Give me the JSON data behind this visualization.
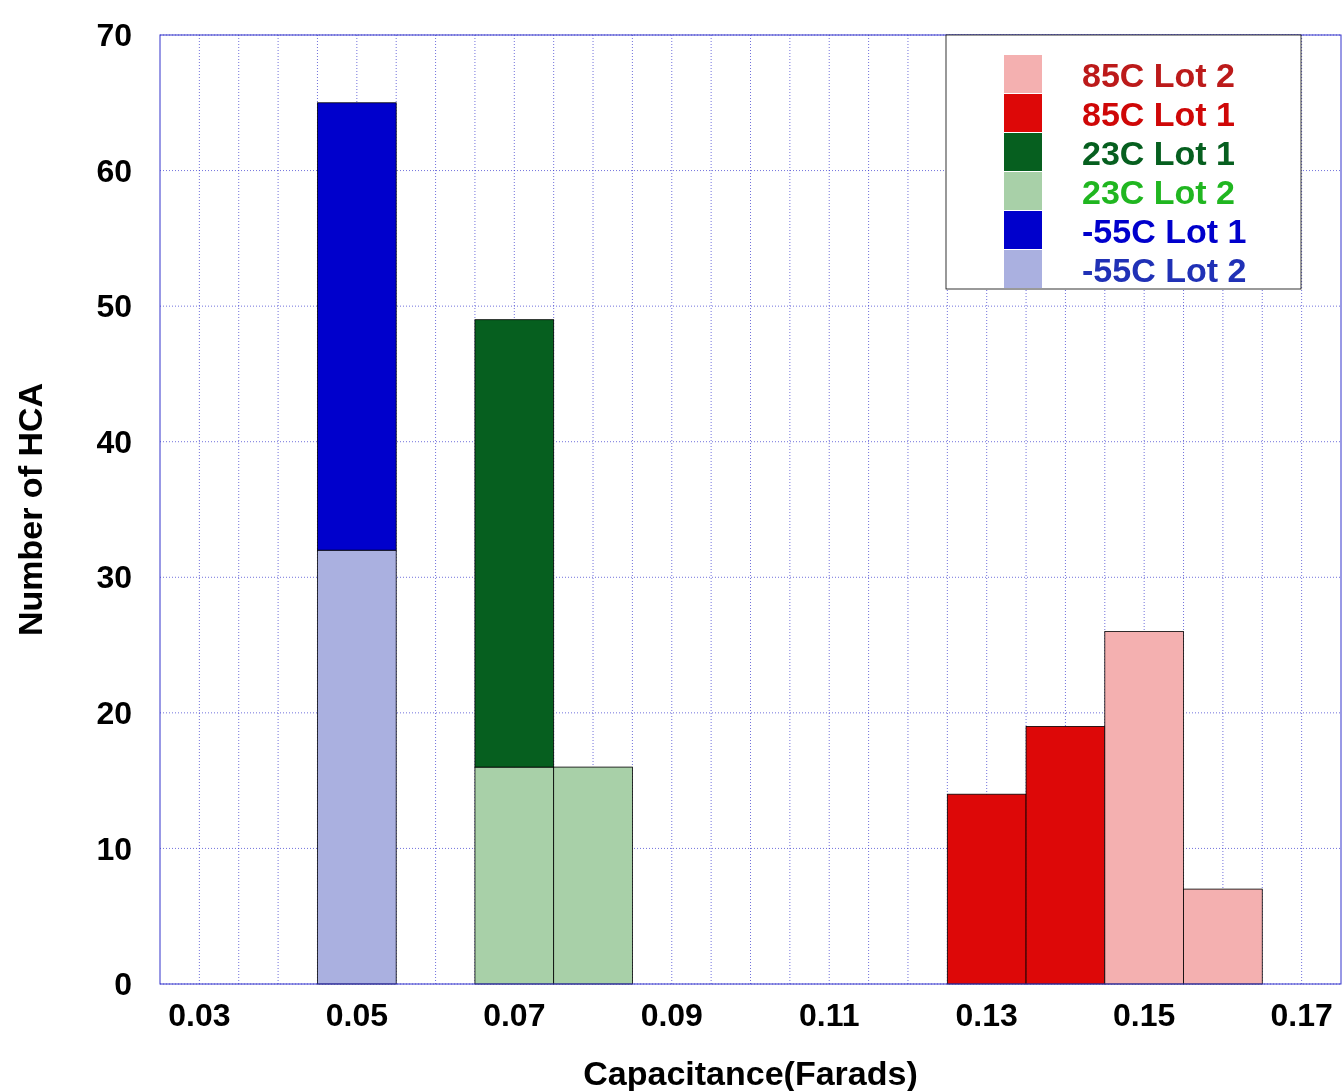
{
  "chart_data": {
    "type": "bar",
    "xlabel": "Capacitance(Farads)",
    "ylabel": "Number of HCA",
    "x": [
      0.05,
      0.06,
      0.07,
      0.08,
      0.09,
      0.1,
      0.11,
      0.12,
      0.13,
      0.14,
      0.15,
      0.16
    ],
    "stacked": true,
    "series": [
      {
        "name": "-55C Lot 2",
        "color": "#aab0e0",
        "values": [
          32,
          0,
          0,
          0,
          0,
          0,
          0,
          0,
          0,
          0,
          0,
          0
        ]
      },
      {
        "name": "-55C Lot 1",
        "color": "#0000cc",
        "values": [
          33,
          0,
          0,
          0,
          0,
          0,
          0,
          0,
          0,
          0,
          0,
          0
        ]
      },
      {
        "name": "23C Lot 2",
        "color": "#a8d0a8",
        "values": [
          0,
          0,
          16,
          16,
          0,
          0,
          0,
          0,
          0,
          0,
          0,
          0
        ]
      },
      {
        "name": "23C Lot 1",
        "color": "#065f1f",
        "values": [
          0,
          0,
          33,
          0,
          0,
          0,
          0,
          0,
          0,
          0,
          0,
          0
        ]
      },
      {
        "name": "85C Lot 1",
        "color": "#dd0808",
        "values": [
          0,
          0,
          0,
          0,
          0,
          0,
          0,
          0,
          14,
          19,
          0,
          0
        ]
      },
      {
        "name": "85C Lot 2",
        "color": "#f4b0b0",
        "values": [
          0,
          0,
          0,
          0,
          0,
          0,
          0,
          0,
          0,
          0,
          26,
          7
        ]
      }
    ],
    "xlim": [
      0.025,
      0.175
    ],
    "xticks": [
      0.03,
      {
        "value": 0.035,
        "label": null
      },
      {
        "value": 0.04,
        "label": null
      },
      {
        "value": 0.045,
        "label": null
      },
      0.05,
      {
        "value": 0.055,
        "label": null
      },
      {
        "value": 0.06,
        "label": null
      },
      {
        "value": 0.065,
        "label": null
      },
      0.07,
      {
        "value": 0.075,
        "label": null
      },
      {
        "value": 0.08,
        "label": null
      },
      {
        "value": 0.085,
        "label": null
      },
      0.09,
      {
        "value": 0.095,
        "label": null
      },
      {
        "value": 0.1,
        "label": null
      },
      {
        "value": 0.105,
        "label": null
      },
      0.11,
      {
        "value": 0.115,
        "label": null
      },
      {
        "value": 0.12,
        "label": null
      },
      {
        "value": 0.125,
        "label": null
      },
      0.13,
      {
        "value": 0.135,
        "label": null
      },
      {
        "value": 0.14,
        "label": null
      },
      {
        "value": 0.145,
        "label": null
      },
      0.15,
      {
        "value": 0.155,
        "label": null
      },
      {
        "value": 0.16,
        "label": null
      },
      {
        "value": 0.165,
        "label": null
      },
      0.17
    ],
    "ylim": [
      0,
      70
    ],
    "yticks": [
      0,
      10,
      20,
      30,
      40,
      50,
      60,
      70
    ],
    "grid": true,
    "legend": "top right"
  }
}
